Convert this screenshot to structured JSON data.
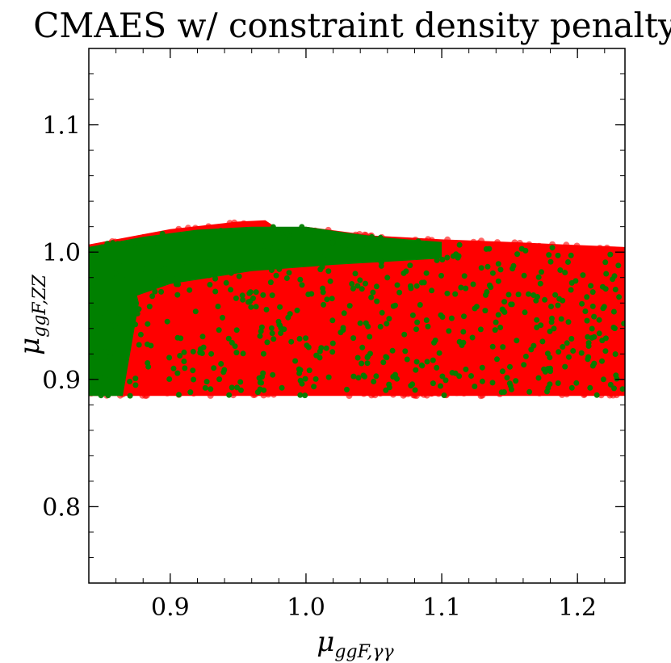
{
  "chart_data": {
    "type": "scatter",
    "title": "CMAES w/ constraint density penalty",
    "xlabel": "μggF,γγ",
    "xlabel_main": "μ",
    "xlabel_sub": "ggF,γγ",
    "ylabel": "μggF,ZZ",
    "ylabel_main": "μ",
    "ylabel_sub": "ggF,ZZ",
    "xlim": [
      0.84,
      1.235
    ],
    "ylim": [
      0.74,
      1.16
    ],
    "x_ticks": [
      0.9,
      1.0,
      1.1,
      1.2
    ],
    "x_tick_labels": [
      "0.9",
      "1.0",
      "1.1",
      "1.2"
    ],
    "y_ticks": [
      0.8,
      0.9,
      1.0,
      1.1
    ],
    "y_tick_labels": [
      "0.8",
      "0.9",
      "1.0",
      "1.1"
    ],
    "grid": false,
    "legend": "none",
    "series": [
      {
        "color": "#ff0000",
        "region": {
          "x_range": [
            0.84,
            1.235
          ],
          "y_min": 0.887,
          "y_top": [
            [
              0.84,
              1.006
            ],
            [
              0.9,
              1.018
            ],
            [
              0.95,
              1.024
            ],
            [
              0.97,
              1.025
            ],
            [
              0.98,
              1.018
            ],
            [
              1.0,
              1.02
            ],
            [
              1.05,
              1.013
            ],
            [
              1.1,
              1.01
            ],
            [
              1.15,
              1.008
            ],
            [
              1.19,
              1.006
            ],
            [
              1.235,
              1.004
            ]
          ]
        },
        "n_points": 2200
      },
      {
        "color": "#008000",
        "region": {
          "x_range": [
            0.84,
            1.235
          ],
          "y_min": 0.887,
          "y_top": [
            [
              0.84,
              1.004
            ],
            [
              0.9,
              1.016
            ],
            [
              0.95,
              1.02
            ],
            [
              1.0,
              1.02
            ],
            [
              1.05,
              1.012
            ],
            [
              1.1,
              1.008
            ],
            [
              1.2,
              1.004
            ],
            [
              1.235,
              1.003
            ]
          ]
        },
        "dense_band": {
          "x_range": [
            0.84,
            0.865
          ],
          "y_range": [
            0.887,
            1.004
          ]
        },
        "n_points": 600
      }
    ]
  }
}
